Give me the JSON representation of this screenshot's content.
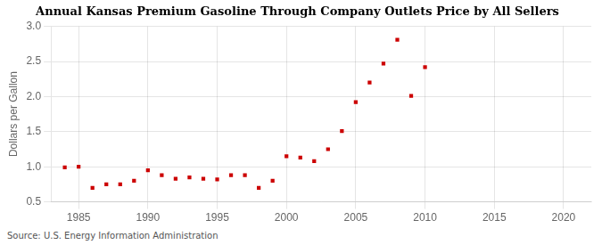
{
  "chart_data": {
    "type": "scatter",
    "title": "Annual Kansas Premium Gasoline Through Company Outlets Price by All Sellers",
    "ylabel": "Dollars per Gallon",
    "source": "Source: U.S. Energy Information Administration",
    "x": [
      1984,
      1985,
      1986,
      1987,
      1988,
      1989,
      1990,
      1991,
      1992,
      1993,
      1994,
      1995,
      1996,
      1997,
      1998,
      1999,
      2000,
      2001,
      2002,
      2003,
      2004,
      2005,
      2006,
      2007,
      2008,
      2009,
      2010
    ],
    "values": [
      0.99,
      1.0,
      0.7,
      0.75,
      0.75,
      0.8,
      0.95,
      0.88,
      0.83,
      0.85,
      0.83,
      0.82,
      0.88,
      0.88,
      0.7,
      0.8,
      1.15,
      1.13,
      1.08,
      1.25,
      1.51,
      1.92,
      2.2,
      2.47,
      2.81,
      2.01,
      2.42
    ],
    "color": "#cc0000",
    "marker": "square",
    "xlim": [
      1983,
      2022
    ],
    "xticks": [
      1985,
      1990,
      1995,
      2000,
      2005,
      2010,
      2015,
      2020
    ],
    "ylim": [
      0.5,
      3.0
    ],
    "yticks": [
      0.5,
      {
        "value": 1.0,
        "label": "1.0"
      },
      1.5,
      {
        "value": 2.0,
        "label": "2.0"
      },
      2.5,
      {
        "value": 3.0,
        "label": "3.0"
      }
    ],
    "grid": true
  }
}
